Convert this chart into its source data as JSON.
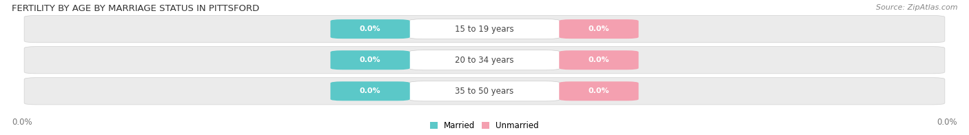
{
  "title": "FERTILITY BY AGE BY MARRIAGE STATUS IN PITTSFORD",
  "source": "Source: ZipAtlas.com",
  "age_groups": [
    "15 to 19 years",
    "20 to 34 years",
    "35 to 50 years"
  ],
  "married_values": [
    0.0,
    0.0,
    0.0
  ],
  "unmarried_values": [
    0.0,
    0.0,
    0.0
  ],
  "married_color": "#5bc8c8",
  "unmarried_color": "#f4a0b0",
  "bar_bg_color": "#ebebeb",
  "bar_border_color": "#d0d0d0",
  "center_label_bg": "#ffffff",
  "title_fontsize": 9.5,
  "source_fontsize": 8,
  "label_fontsize": 8.5,
  "value_fontsize": 8,
  "background_color": "#ffffff",
  "axis_label_color": "#777777",
  "text_color": "#444444"
}
